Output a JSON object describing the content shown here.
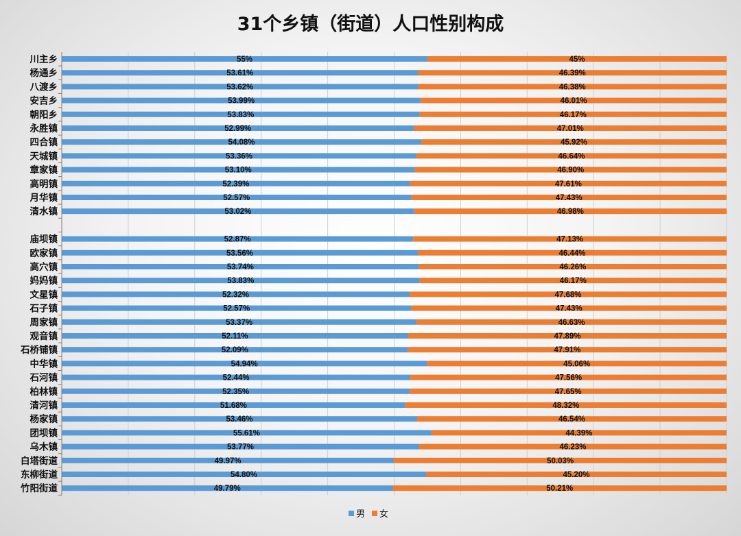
{
  "chart_data": {
    "type": "bar",
    "orientation": "horizontal",
    "stacked": "percent",
    "title": "31个乡镇（街道）人口性别构成",
    "legend_position": "bottom",
    "grid": true,
    "categories": [
      "川主乡",
      "杨通乡",
      "八渡乡",
      "安吉乡",
      "朝阳乡",
      "永胜镇",
      "四合镇",
      "天城镇",
      "章家镇",
      "高明镇",
      "月华镇",
      "清水镇",
      "",
      "庙坝镇",
      "欧家镇",
      "高穴镇",
      "妈妈镇",
      "文星镇",
      "石子镇",
      "周家镇",
      "观音镇",
      "石桥铺镇",
      "中华镇",
      "石河镇",
      "柏林镇",
      "清河镇",
      "杨家镇",
      "团坝镇",
      "乌木镇",
      "白塔街道",
      "东柳街道",
      "竹阳街道"
    ],
    "series": [
      {
        "name": "男",
        "color": "#5b9bd5",
        "values": [
          55,
          53.61,
          53.62,
          53.99,
          53.83,
          52.99,
          54.08,
          53.36,
          53.1,
          52.39,
          52.57,
          53.02,
          null,
          52.87,
          53.56,
          53.74,
          53.83,
          52.32,
          52.57,
          53.37,
          52.11,
          52.09,
          54.94,
          52.44,
          52.35,
          51.68,
          53.46,
          55.61,
          53.77,
          49.97,
          54.8,
          49.79
        ],
        "labels": [
          "55%",
          "53.61%",
          "53.62%",
          "53.99%",
          "53.83%",
          "52.99%",
          "54.08%",
          "53.36%",
          "53.10%",
          "52.39%",
          "52.57%",
          "53.02%",
          "",
          "52.87%",
          "53.56%",
          "53.74%",
          "53.83%",
          "52.32%",
          "52.57%",
          "53.37%",
          "52.11%",
          "52.09%",
          "54.94%",
          "52.44%",
          "52.35%",
          "51.68%",
          "53.46%",
          "55.61%",
          "53.77%",
          "49.97%",
          "54.80%",
          "49.79%"
        ]
      },
      {
        "name": "女",
        "color": "#ed7d31",
        "values": [
          45,
          46.39,
          46.38,
          46.01,
          46.17,
          47.01,
          45.92,
          46.64,
          46.9,
          47.61,
          47.43,
          46.98,
          null,
          47.13,
          46.44,
          46.26,
          46.17,
          47.68,
          47.43,
          46.63,
          47.89,
          47.91,
          45.06,
          47.56,
          47.65,
          48.32,
          46.54,
          44.39,
          46.23,
          50.03,
          45.2,
          50.21
        ],
        "labels": [
          "45%",
          "46.39%",
          "46.38%",
          "46.01%",
          "46.17%",
          "47.01%",
          "45.92%",
          "46.64%",
          "46.90%",
          "47.61%",
          "47.43%",
          "46.98%",
          "",
          "47.13%",
          "46.44%",
          "46.26%",
          "46.17%",
          "47.68%",
          "47.43%",
          "46.63%",
          "47.89%",
          "47.91%",
          "45.06%",
          "47.56%",
          "47.65%",
          "48.32%",
          "46.54%",
          "44.39%",
          "46.23%",
          "50.03%",
          "45.20%",
          "50.21%"
        ]
      }
    ],
    "xlim": [
      0,
      100
    ]
  }
}
